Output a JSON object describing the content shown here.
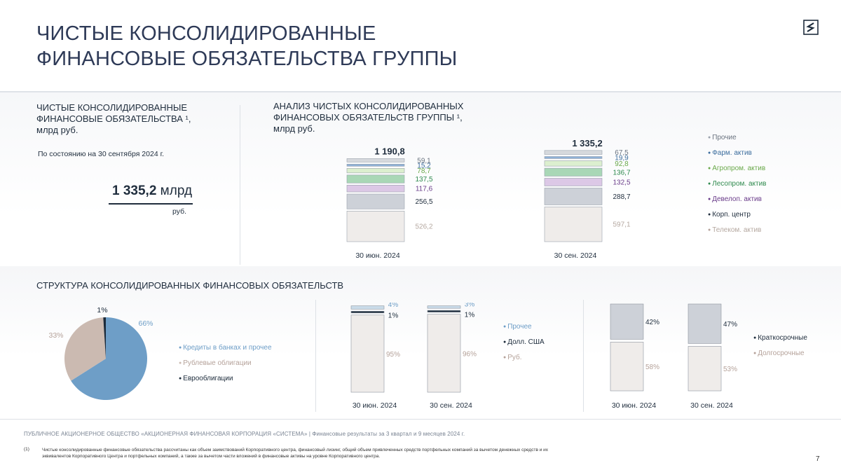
{
  "header": {
    "title_line1": "ЧИСТЫЕ КОНСОЛИДИРОВАННЫЕ",
    "title_line2": "ФИНАНСОВЫЕ ОБЯЗАТЕЛЬСТВА ГРУППЫ"
  },
  "kpi": {
    "heading_line1": "ЧИСТЫЕ КОНСОЛИДИРОВАННЫЕ",
    "heading_line2": "ФИНАНСОВЫЕ ОБЯЗАТЕЛЬСТВА ¹,",
    "heading_line3": "млрд руб.",
    "as_of": "По состоянию на 30 сентября 2024 г.",
    "value_bold": "1 335,2",
    "value_unit": " млрд",
    "value_unit2": "руб."
  },
  "analysis": {
    "heading_line1": "АНАЛИЗ ЧИСТЫХ КОНСОЛИДИРОВАННЫХ",
    "heading_line2": "ФИНАНСОВЫХ ОБЯЗАТЕЛЬСТВ ГРУППЫ ¹,",
    "heading_line3": "млрд руб."
  },
  "structure": {
    "heading": "СТРУКТУРА КОНСОЛИДИРОВАННЫХ ФИНАНСОВЫХ ОБЯЗАТЕЛЬСТВ"
  },
  "footer": {
    "company": "ПУБЛИЧНОЕ АКЦИОНЕРНОЕ ОБЩЕСТВО «АКЦИОНЕРНАЯ ФИНАНСОВАЯ КОРПОРАЦИЯ «СИСТЕМА» | Финансовые результаты за 3 квартал и 9 месяцев 2024 г.",
    "note_num": "(1)",
    "note": "Чистые консолидированные финансовые обязательства рассчитаны как объем заимствований Корпоративного центра, финансовый лизинг, общий объем привлеченных средств портфельных компаний за вычетом денежных средств и их эквивалентов Корпоративного Центра и портфельных компаний, а также за вычетом части вложений в финансовые активы на уровне Корпоративного центра.",
    "page": "7"
  },
  "colors": {
    "title": "#2e3a57",
    "telecom": "#efecea",
    "corp_center": "#cdd1d8",
    "devel": "#dcc8e6",
    "forest": "#a9d7b6",
    "agro": "#dcefcf",
    "pharma": "#8fb1d6",
    "other": "#d6d9dd",
    "credits": "#6e9ec7",
    "ruble_bonds": "#cbbab1",
    "eurobonds": "#1b2a3a"
  },
  "chart_data": [
    {
      "type": "bar",
      "stacked": true,
      "categories": [
        "30 июн. 2024",
        "30 сен. 2024"
      ],
      "totals": [
        "1 190,8",
        "1 335,2"
      ],
      "series": [
        {
          "name": "Телеком. актив",
          "values": [
            526.2,
            597.1
          ],
          "labels": [
            "526,2",
            "597,1"
          ],
          "color": "#efecea",
          "label_color": "#b5a8a0"
        },
        {
          "name": "Корп. центр",
          "values": [
            256.5,
            288.7
          ],
          "labels": [
            "256,5",
            "288,7"
          ],
          "color": "#cdd1d8",
          "label_color": "#1f2d3d"
        },
        {
          "name": "Девелоп. актив",
          "values": [
            117.6,
            132.5
          ],
          "labels": [
            "117,6",
            "132,5"
          ],
          "color": "#dcc8e6",
          "label_color": "#6a3d8a"
        },
        {
          "name": "Лесопром. актив",
          "values": [
            137.5,
            136.7
          ],
          "labels": [
            "137,5",
            "136,7"
          ],
          "color": "#a9d7b6",
          "label_color": "#2f8a4e"
        },
        {
          "name": "Агропром. актив",
          "values": [
            78.7,
            92.8
          ],
          "labels": [
            "78,7",
            "92,8"
          ],
          "color": "#dcefcf",
          "label_color": "#6aa94a"
        },
        {
          "name": "Фарм. актив",
          "values": [
            15.2,
            19.9
          ],
          "labels": [
            "15,2",
            "19,9"
          ],
          "color": "#8fb1d6",
          "label_color": "#3d6e9e"
        },
        {
          "name": "Прочие",
          "values": [
            59.1,
            67.5
          ],
          "labels": [
            "59,1",
            "67,5"
          ],
          "color": "#d6d9dd",
          "label_color": "#6b7480"
        }
      ],
      "legend_order": [
        "Прочие",
        "Фарм. актив",
        "Агропром. актив",
        "Лесопром. актив",
        "Девелоп. актив",
        "Корп. центр",
        "Телеком. актив"
      ],
      "legend_placement": "right"
    },
    {
      "type": "pie",
      "slices": [
        {
          "name": "Кредиты в банках и прочее",
          "value": 66,
          "label": "66%",
          "color": "#6e9ec7",
          "label_color": "#6e9ec7"
        },
        {
          "name": "Рублевые облигации",
          "value": 33,
          "label": "33%",
          "color": "#cbbab1",
          "label_color": "#b5a29a"
        },
        {
          "name": "Еврооблигации",
          "value": 1,
          "label": "1%",
          "color": "#1b2a3a",
          "label_color": "#1b2a3a"
        }
      ],
      "legend_placement": "right"
    },
    {
      "type": "bar",
      "stacked": true,
      "percent": true,
      "categories": [
        "30 июн. 2024",
        "30 сен. 2024"
      ],
      "series": [
        {
          "name": "Руб.",
          "values": [
            95,
            96
          ],
          "labels": [
            "95%",
            "96%"
          ],
          "color": "#efecea",
          "label_color": "#b5a29a"
        },
        {
          "name": "Долл. США",
          "values": [
            1,
            1
          ],
          "labels": [
            "1%",
            "1%"
          ],
          "color": "#1b2a3a",
          "label_color": "#1b2a3a"
        },
        {
          "name": "Прочее",
          "values": [
            4,
            3
          ],
          "labels": [
            "4%",
            "3%"
          ],
          "color": "#c9dbe9",
          "label_color": "#6e9ec7"
        }
      ],
      "legend_order": [
        "Прочее",
        "Долл. США",
        "Руб."
      ],
      "legend_placement": "right"
    },
    {
      "type": "bar",
      "stacked": true,
      "percent": true,
      "categories": [
        "30 июн. 2024",
        "30 сен. 2024"
      ],
      "series": [
        {
          "name": "Долгосрочные",
          "values": [
            58,
            53
          ],
          "labels": [
            "58%",
            "53%"
          ],
          "color": "#efecea",
          "label_color": "#b5a29a"
        },
        {
          "name": "Краткосрочные",
          "values": [
            42,
            47
          ],
          "labels": [
            "42%",
            "47%"
          ],
          "color": "#cdd1d8",
          "label_color": "#1f2d3d"
        }
      ],
      "legend_order": [
        "Краткосрочные",
        "Долгосрочные"
      ],
      "legend_placement": "right"
    }
  ]
}
